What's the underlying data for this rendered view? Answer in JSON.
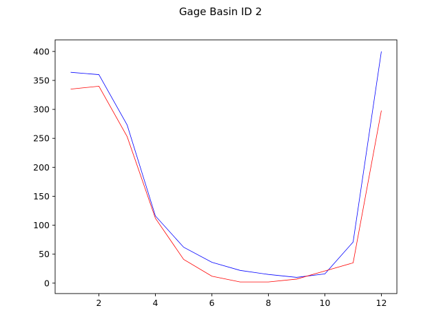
{
  "chart_data": {
    "type": "line",
    "title": "Gage Basin ID 2",
    "xlabel": "",
    "ylabel": "",
    "x": [
      1,
      2,
      3,
      4,
      5,
      6,
      7,
      8,
      9,
      10,
      11,
      12
    ],
    "series": [
      {
        "color": "#0000ff",
        "values": [
          364,
          360,
          273,
          116,
          62,
          36,
          22,
          15,
          10,
          16,
          71,
          400
        ]
      },
      {
        "color": "#ff0000",
        "values": [
          335,
          340,
          253,
          112,
          41,
          12,
          2,
          2,
          7,
          21,
          35,
          298
        ]
      }
    ],
    "xlim": [
      0.45,
      12.55
    ],
    "ylim": [
      -18,
      420
    ],
    "xticks": [
      2,
      4,
      6,
      8,
      10,
      12
    ],
    "yticks": [
      0,
      50,
      100,
      150,
      200,
      250,
      300,
      350,
      400
    ],
    "grid": false,
    "legend": false
  }
}
